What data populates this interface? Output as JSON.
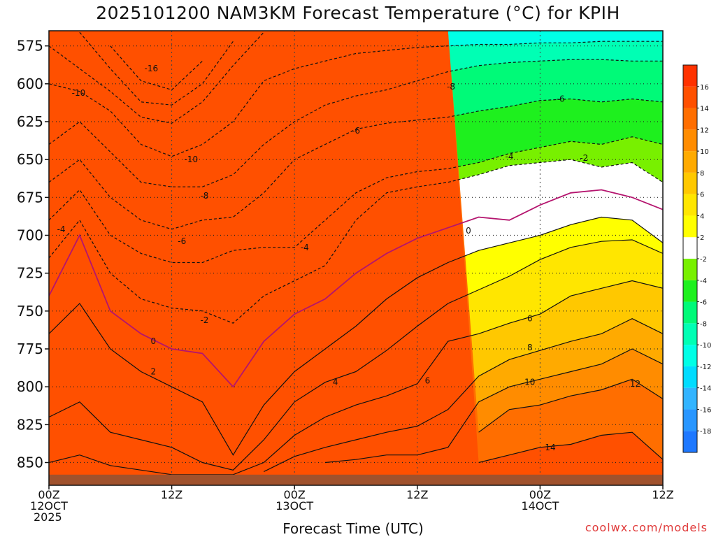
{
  "chart_data": {
    "type": "time-height contour",
    "title": "2025101200 NAM3KM Forecast Temperature (°C) for KPIH",
    "xlabel": "Forecast Time (UTC)",
    "ylabel": "",
    "credit": "coolwx.com/models",
    "x_ticks": [
      {
        "hour": 0,
        "lines": [
          "00Z",
          "12OCT",
          "2025"
        ]
      },
      {
        "hour": 12,
        "lines": [
          "12Z"
        ]
      },
      {
        "hour": 24,
        "lines": [
          "00Z",
          "13OCT"
        ]
      },
      {
        "hour": 36,
        "lines": [
          "12Z"
        ]
      },
      {
        "hour": 48,
        "lines": [
          "00Z",
          "14OCT"
        ]
      },
      {
        "hour": 60,
        "lines": [
          "12Z"
        ]
      }
    ],
    "xlim": [
      0,
      60
    ],
    "ylim": [
      865,
      565
    ],
    "y_ticks": [
      575,
      600,
      625,
      650,
      675,
      700,
      725,
      750,
      775,
      800,
      825,
      850
    ],
    "ground_pressure_hpa": 858,
    "colorbar": {
      "levels": [
        -20,
        -18,
        -16,
        -14,
        -12,
        -10,
        -8,
        -6,
        -4,
        -2,
        2,
        4,
        6,
        8,
        10,
        12,
        14,
        16,
        18
      ],
      "tick_labels": [
        "16",
        "14",
        "12",
        "10",
        "8",
        "6",
        "4",
        "2",
        "-2",
        "-4",
        "-6",
        "-8",
        "-10",
        "-12",
        "-14",
        "-16",
        "-18"
      ],
      "colors": [
        "#1e78ff",
        "#2896ff",
        "#32b4ff",
        "#00dcff",
        "#00ffe6",
        "#00ffb4",
        "#00fa78",
        "#1ef01e",
        "#78f000",
        "#ffffff",
        "#ffff00",
        "#ffe600",
        "#ffc800",
        "#ffaa00",
        "#ff8c00",
        "#ff6e00",
        "#ff5000",
        "#ff3200"
      ]
    },
    "hours": [
      0,
      3,
      6,
      9,
      12,
      15,
      18,
      21,
      24,
      27,
      30,
      33,
      36,
      39,
      42,
      45,
      48,
      51,
      54,
      57,
      60
    ],
    "isotherm_pressure_hpa": {
      "-16": [
        null,
        null,
        575,
        598,
        604,
        585,
        null,
        null,
        null,
        null,
        null,
        null,
        null,
        null,
        null,
        null,
        null,
        null,
        null,
        null,
        null
      ],
      "-14": [
        null,
        566,
        590,
        612,
        614,
        600,
        572,
        null,
        null,
        null,
        null,
        null,
        null,
        null,
        null,
        null,
        null,
        null,
        null,
        null,
        null
      ],
      "-12": [
        575,
        590,
        605,
        622,
        626,
        612,
        588,
        566,
        null,
        null,
        null,
        null,
        null,
        null,
        null,
        null,
        null,
        null,
        null,
        null,
        null
      ],
      "-10": [
        600,
        605,
        618,
        640,
        648,
        640,
        625,
        598,
        590,
        585,
        580,
        578,
        576,
        575,
        574,
        574,
        573,
        573,
        572,
        572,
        572
      ],
      "-8": [
        640,
        625,
        645,
        665,
        668,
        668,
        660,
        640,
        625,
        614,
        608,
        604,
        598,
        592,
        588,
        586,
        585,
        584,
        584,
        585,
        585
      ],
      "-6": [
        665,
        650,
        675,
        690,
        696,
        690,
        688,
        672,
        650,
        640,
        630,
        626,
        624,
        622,
        618,
        615,
        611,
        610,
        612,
        610,
        612
      ],
      "-4": [
        690,
        670,
        700,
        712,
        718,
        718,
        710,
        708,
        708,
        690,
        672,
        662,
        658,
        656,
        652,
        646,
        642,
        638,
        640,
        635,
        640
      ],
      "-2": [
        715,
        690,
        725,
        742,
        748,
        750,
        758,
        740,
        730,
        720,
        690,
        672,
        668,
        665,
        660,
        654,
        652,
        650,
        655,
        652,
        665
      ],
      "0": [
        740,
        700,
        750,
        765,
        775,
        778,
        800,
        770,
        752,
        742,
        725,
        712,
        702,
        695,
        688,
        690,
        680,
        672,
        670,
        675,
        683
      ],
      "2": [
        765,
        745,
        775,
        790,
        800,
        810,
        845,
        812,
        790,
        775,
        760,
        742,
        728,
        718,
        710,
        705,
        700,
        693,
        688,
        690,
        705
      ],
      "4": [
        820,
        810,
        830,
        835,
        840,
        850,
        855,
        835,
        810,
        797,
        790,
        776,
        760,
        745,
        736,
        727,
        716,
        708,
        704,
        703,
        712
      ],
      "6": [
        850,
        845,
        852,
        855,
        858,
        858,
        858,
        850,
        832,
        820,
        812,
        806,
        798,
        770,
        765,
        758,
        752,
        740,
        735,
        730,
        735
      ],
      "8": [
        null,
        null,
        null,
        null,
        null,
        null,
        null,
        856,
        846,
        840,
        835,
        830,
        826,
        815,
        793,
        782,
        776,
        770,
        765,
        755,
        765
      ],
      "10": [
        null,
        null,
        null,
        null,
        null,
        null,
        null,
        null,
        null,
        850,
        848,
        845,
        845,
        840,
        810,
        800,
        795,
        790,
        785,
        775,
        785
      ],
      "12": [
        null,
        null,
        null,
        null,
        null,
        null,
        null,
        null,
        null,
        null,
        null,
        null,
        null,
        null,
        830,
        815,
        812,
        806,
        802,
        795,
        808
      ],
      "14": [
        null,
        null,
        null,
        null,
        null,
        null,
        null,
        null,
        null,
        null,
        null,
        null,
        null,
        null,
        850,
        845,
        840,
        838,
        832,
        830,
        848
      ]
    },
    "contour_labels": [
      {
        "text": "-16",
        "hour": 10.0,
        "p": 590
      },
      {
        "text": "-10",
        "hour": 2.9,
        "p": 606
      },
      {
        "text": "-10",
        "hour": 13.9,
        "p": 650
      },
      {
        "text": "-8",
        "hour": 15.2,
        "p": 674
      },
      {
        "text": "-8",
        "hour": 39.3,
        "p": 602
      },
      {
        "text": "-6",
        "hour": 13.0,
        "p": 704
      },
      {
        "text": "-6",
        "hour": 30.0,
        "p": 631
      },
      {
        "text": "-6",
        "hour": 50.0,
        "p": 610
      },
      {
        "text": "-4",
        "hour": 1.2,
        "p": 696
      },
      {
        "text": "-4",
        "hour": 25.0,
        "p": 708
      },
      {
        "text": "-4",
        "hour": 45.0,
        "p": 648
      },
      {
        "text": "-2",
        "hour": 15.2,
        "p": 756
      },
      {
        "text": "-2",
        "hour": 52.3,
        "p": 649
      },
      {
        "text": "0",
        "hour": 10.2,
        "p": 770
      },
      {
        "text": "0",
        "hour": 41.0,
        "p": 697
      },
      {
        "text": "2",
        "hour": 10.2,
        "p": 790
      },
      {
        "text": "4",
        "hour": 28.0,
        "p": 797
      },
      {
        "text": "6",
        "hour": 37.0,
        "p": 796
      },
      {
        "text": "6",
        "hour": 47.0,
        "p": 755
      },
      {
        "text": "8",
        "hour": 47.0,
        "p": 774
      },
      {
        "text": "10",
        "hour": 47.0,
        "p": 797
      },
      {
        "text": "12",
        "hour": 57.3,
        "p": 798
      },
      {
        "text": "14",
        "hour": 49.0,
        "p": 840
      }
    ]
  }
}
